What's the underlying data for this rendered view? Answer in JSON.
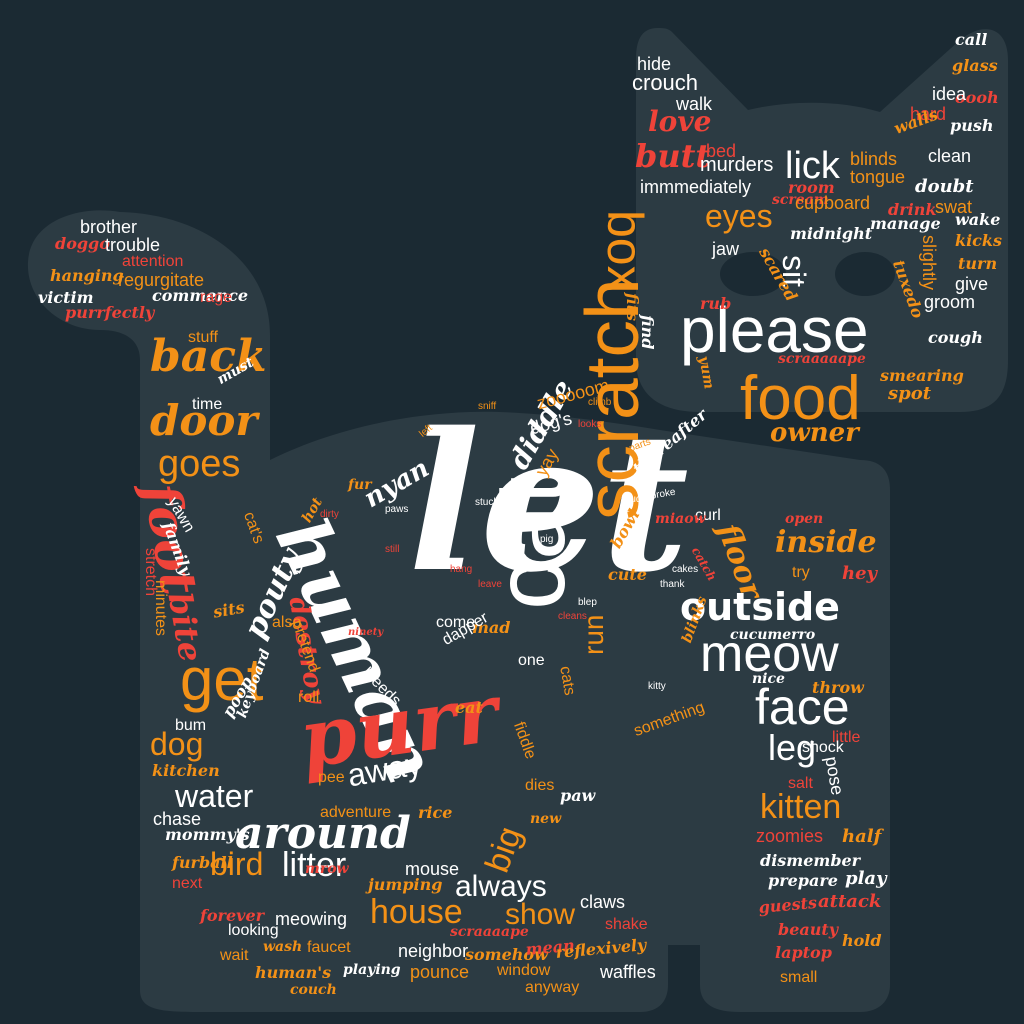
{
  "colors": {
    "background": "#1b2a33",
    "silhouette": "#2c3b43",
    "white": "#ffffff",
    "orange": "#f39117",
    "red": "#ef4339"
  },
  "words": [
    "let",
    "cat",
    "human",
    "purr",
    "scratch",
    "please",
    "food",
    "around",
    "meow",
    "outside",
    "face",
    "get",
    "back",
    "door",
    "foot",
    "box",
    "lick",
    "goes",
    "bite",
    "leg",
    "kitten",
    "water",
    "bird",
    "litter",
    "house",
    "show",
    "always",
    "big",
    "away",
    "dog",
    "sit",
    "eyes",
    "nyan",
    "diddle",
    "floor",
    "inside",
    "pouty",
    "destroy",
    "run",
    "butt",
    "love",
    "owner",
    "hide",
    "crouch",
    "walk",
    "call",
    "glass",
    "oooh",
    "idea",
    "hard",
    "push",
    "walls",
    "clean",
    "bed",
    "murders",
    "blinds",
    "room",
    "scream",
    "tongue",
    "immmediately",
    "cupboard",
    "doubt",
    "swat",
    "drink",
    "wake",
    "manage",
    "midnight",
    "kicks",
    "turn",
    "jaw",
    "give",
    "scared",
    "tuxedo",
    "slightly",
    "groom",
    "rub",
    "fits",
    "find",
    "yum",
    "cough",
    "scraaaaape",
    "smearing",
    "spot",
    "brother",
    "doggo",
    "trouble",
    "attention",
    "hanging",
    "regurgitate",
    "victim",
    "commence",
    "rage",
    "purrfectly",
    "stuff",
    "must",
    "time",
    "zooooom",
    "dog's",
    "yay",
    "thereafter",
    "curl",
    "miaow",
    "catch",
    "open",
    "hey",
    "try",
    "cucumerro",
    "nice",
    "throw",
    "little",
    "shock",
    "pose",
    "salt",
    "zoomies",
    "half",
    "dismember",
    "prepare",
    "play",
    "attack",
    "guests",
    "hold",
    "beauty",
    "laptop",
    "small",
    "waffles",
    "window",
    "anyway",
    "pounce",
    "somehow",
    "mean",
    "reflexively",
    "scraaaape",
    "neighbor",
    "claws",
    "shake",
    "mouse",
    "jumping",
    "mrow",
    "wash",
    "faucet",
    "meowing",
    "looking",
    "wait",
    "forever",
    "next",
    "furball",
    "human's",
    "couch",
    "playing",
    "mommy's",
    "chase",
    "adventure",
    "rice",
    "new",
    "dies",
    "paw",
    "fiddle",
    "pee",
    "something",
    "cats",
    "one",
    "come",
    "mad",
    "eat",
    "bleeds",
    "dapper",
    "pretend",
    "roll",
    "also",
    "sits",
    "keyboard",
    "poop",
    "bum",
    "kitchen",
    "minutes",
    "stretch",
    "family",
    "yawn",
    "cat's",
    "hot",
    "fur",
    "blinks",
    "kitty",
    "bowl",
    "cute",
    "cakes",
    "thank",
    "parts",
    "mud",
    "broke",
    "stuck",
    "pig",
    "blep",
    "leave",
    "cleans",
    "still",
    "stare",
    "hang",
    "ninety",
    "paws",
    "dirty",
    "left",
    "sniff",
    "looks",
    "climb"
  ]
}
